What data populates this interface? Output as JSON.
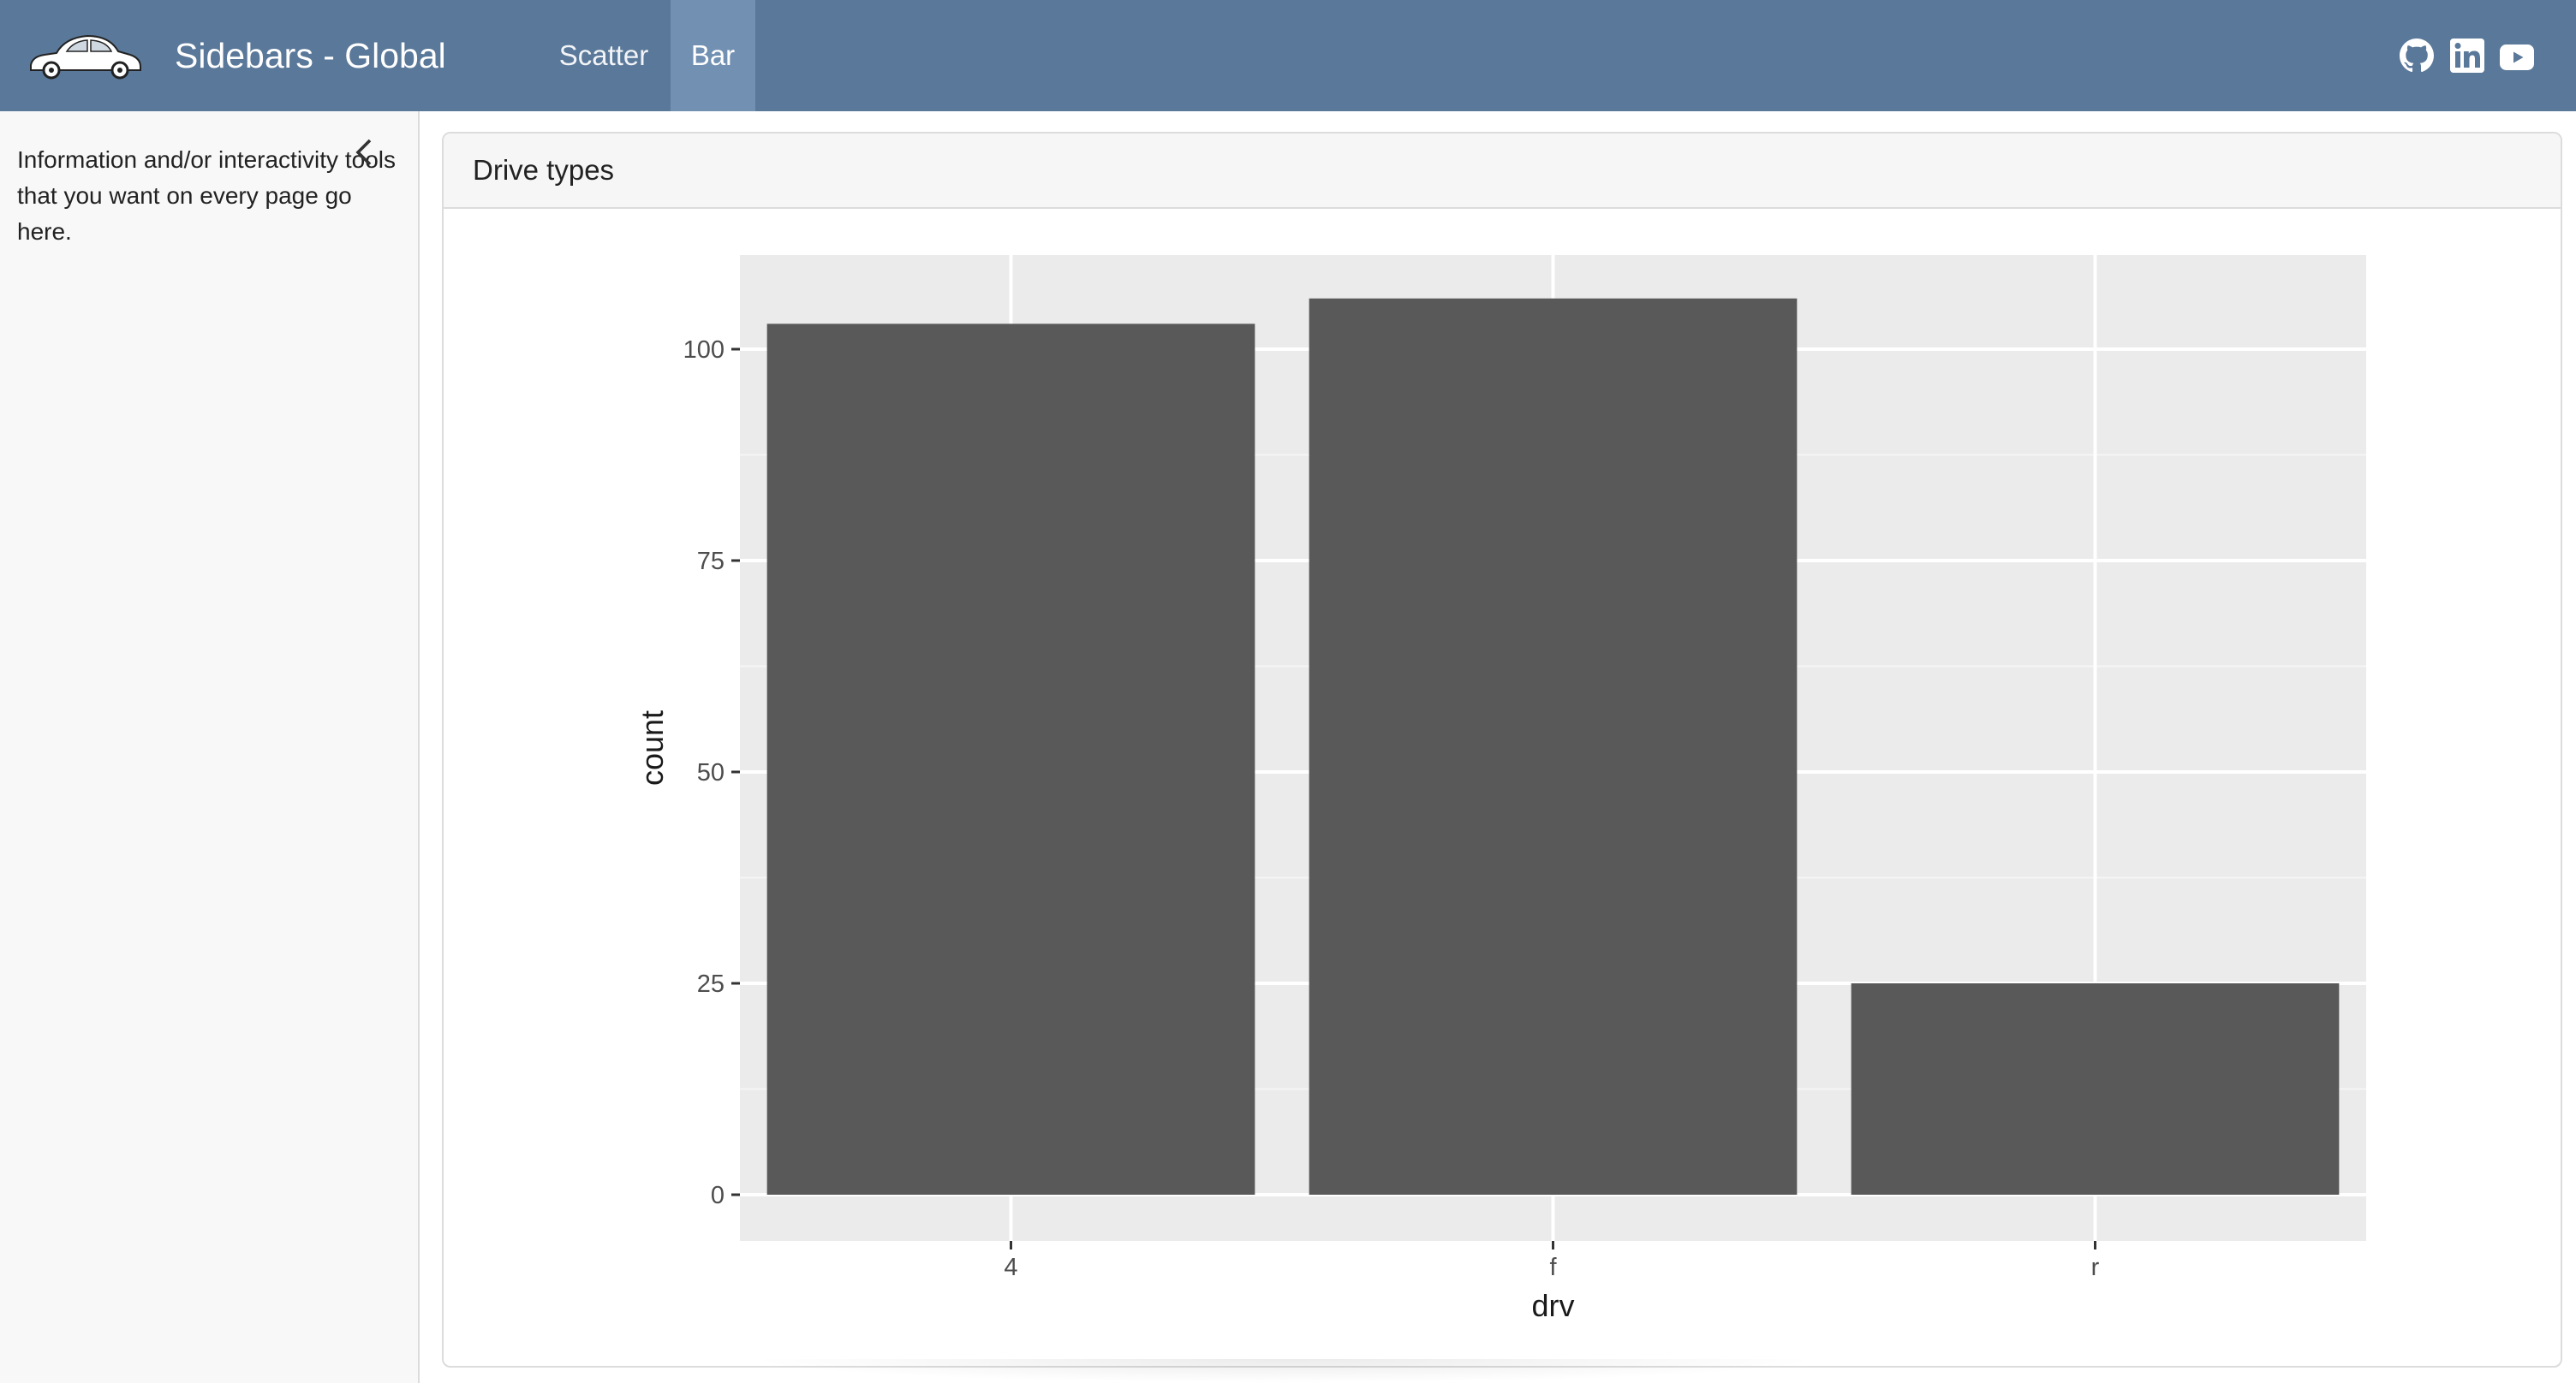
{
  "app": {
    "brand": "Sidebars - Global",
    "nav": [
      {
        "label": "Scatter",
        "active": false
      },
      {
        "label": "Bar",
        "active": true
      }
    ],
    "icons": [
      "car-logo-icon",
      "github-icon",
      "linkedin-icon",
      "youtube-icon"
    ],
    "colors": {
      "navbar": "#5a7899",
      "active_tab": "#7290b2",
      "bar": "#595959",
      "panel": "#ebebeb"
    }
  },
  "sidebar": {
    "text": "Information and/or interactivity tools that you want on every page go here."
  },
  "card": {
    "title": "Drive types"
  },
  "chart_data": {
    "type": "bar",
    "categories": [
      "4",
      "f",
      "r"
    ],
    "values": [
      103,
      106,
      25
    ],
    "xlabel": "drv",
    "ylabel": "count",
    "ylim": [
      0,
      112
    ],
    "yticks": [
      0,
      25,
      50,
      75,
      100
    ],
    "grid": true
  }
}
